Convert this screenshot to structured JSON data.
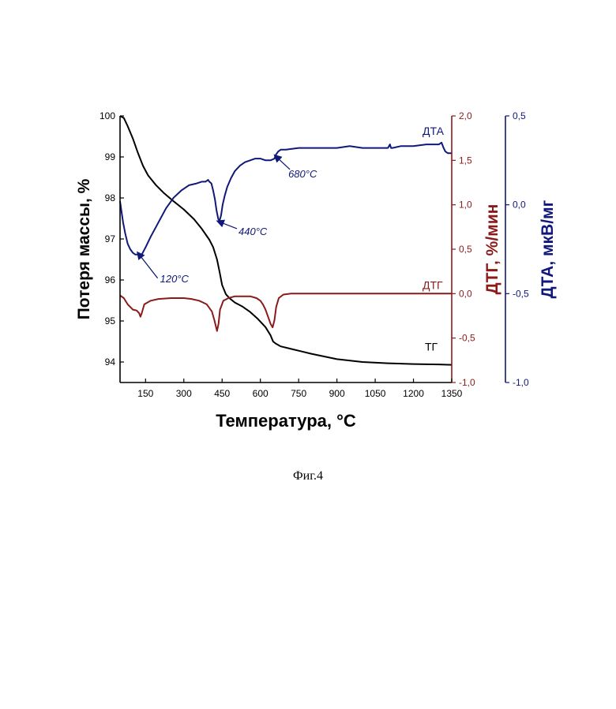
{
  "caption": "Фиг.4",
  "chart_data": {
    "type": "line",
    "xlabel": "Температура, °C",
    "x_ticks": [
      "150",
      "300",
      "450",
      "600",
      "750",
      "900",
      "1050",
      "1200",
      "1350"
    ],
    "x_range": [
      50,
      1350
    ],
    "axes": {
      "left": {
        "label": "Потеря массы, %",
        "range": [
          93.5,
          100
        ],
        "ticks": [
          "94",
          "95",
          "96",
          "97",
          "98",
          "99",
          "100"
        ],
        "color": "#000000"
      },
      "right1": {
        "label": "ДТГ, %/мин",
        "range": [
          -1.0,
          2.0
        ],
        "ticks": [
          "-1,0",
          "-0,5",
          "0,0",
          "0,5",
          "1,0",
          "1,5",
          "2,0"
        ],
        "color": "#8b1a1a"
      },
      "right2": {
        "label": "ДТА, мкВ/мг",
        "range": [
          -1.0,
          0.5
        ],
        "ticks": [
          "-1,0",
          "-0,5",
          "0,0",
          "0,5"
        ],
        "color": "#10187a"
      }
    },
    "series": [
      {
        "name": "ТГ",
        "axis": "left",
        "color": "#000000",
        "x": [
          50,
          65,
          80,
          100,
          120,
          140,
          160,
          190,
          220,
          260,
          300,
          340,
          370,
          400,
          415,
          430,
          440,
          450,
          465,
          480,
          500,
          530,
          560,
          590,
          620,
          640,
          650,
          660,
          680,
          720,
          800,
          900,
          1000,
          1100,
          1200,
          1300,
          1350
        ],
        "y": [
          100,
          99.95,
          99.75,
          99.45,
          99.1,
          98.78,
          98.55,
          98.32,
          98.13,
          97.92,
          97.72,
          97.48,
          97.25,
          96.98,
          96.8,
          96.5,
          96.2,
          95.88,
          95.65,
          95.55,
          95.45,
          95.35,
          95.22,
          95.05,
          94.85,
          94.65,
          94.5,
          94.45,
          94.38,
          94.32,
          94.2,
          94.07,
          94.0,
          93.97,
          93.95,
          93.94,
          93.93
        ]
      },
      {
        "name": "ДТГ",
        "axis": "right1",
        "color": "#8b1a1a",
        "x": [
          50,
          65,
          80,
          100,
          115,
          125,
          130,
          135,
          145,
          170,
          200,
          250,
          300,
          330,
          360,
          390,
          410,
          420,
          430,
          436,
          442,
          455,
          475,
          500,
          530,
          560,
          585,
          600,
          610,
          620,
          630,
          640,
          648,
          655,
          662,
          672,
          690,
          720,
          800,
          900,
          1000,
          1100,
          1200,
          1300,
          1350
        ],
        "y": [
          -0.02,
          -0.05,
          -0.12,
          -0.18,
          -0.19,
          -0.22,
          -0.26,
          -0.22,
          -0.12,
          -0.08,
          -0.06,
          -0.05,
          -0.05,
          -0.06,
          -0.08,
          -0.12,
          -0.2,
          -0.3,
          -0.42,
          -0.34,
          -0.18,
          -0.08,
          -0.05,
          -0.03,
          -0.03,
          -0.03,
          -0.05,
          -0.08,
          -0.12,
          -0.18,
          -0.26,
          -0.34,
          -0.38,
          -0.3,
          -0.15,
          -0.05,
          -0.01,
          0.0,
          0.0,
          0.0,
          0.0,
          0.0,
          0.0,
          0.0,
          0.0
        ]
      },
      {
        "name": "ДТА",
        "axis": "right2",
        "color": "#10187a",
        "x": [
          50,
          55,
          62,
          70,
          80,
          90,
          100,
          110,
          120,
          128,
          135,
          150,
          170,
          200,
          230,
          260,
          290,
          320,
          350,
          370,
          385,
          395,
          400,
          408,
          415,
          422,
          428,
          435,
          440,
          446,
          452,
          460,
          470,
          485,
          500,
          520,
          540,
          560,
          580,
          600,
          620,
          640,
          655,
          660,
          670,
          680,
          700,
          750,
          800,
          900,
          950,
          1000,
          1050,
          1100,
          1108,
          1112,
          1118,
          1150,
          1200,
          1250,
          1300,
          1310,
          1318,
          1325,
          1335,
          1350
        ],
        "y": [
          0.02,
          -0.03,
          -0.1,
          -0.16,
          -0.22,
          -0.25,
          -0.27,
          -0.28,
          -0.28,
          -0.29,
          -0.28,
          -0.24,
          -0.18,
          -0.1,
          -0.02,
          0.04,
          0.08,
          0.11,
          0.12,
          0.13,
          0.13,
          0.14,
          0.13,
          0.12,
          0.08,
          0.03,
          -0.03,
          -0.08,
          -0.09,
          -0.06,
          0.0,
          0.05,
          0.1,
          0.15,
          0.19,
          0.22,
          0.24,
          0.25,
          0.26,
          0.26,
          0.25,
          0.25,
          0.26,
          0.28,
          0.3,
          0.31,
          0.31,
          0.32,
          0.32,
          0.32,
          0.33,
          0.32,
          0.32,
          0.32,
          0.34,
          0.32,
          0.32,
          0.33,
          0.33,
          0.34,
          0.34,
          0.35,
          0.32,
          0.3,
          0.29,
          0.29
        ]
      }
    ],
    "annotations": [
      {
        "text": "120°C",
        "series": "ДТА",
        "x": 120,
        "y": -0.28
      },
      {
        "text": "440°C",
        "series": "ДТА",
        "x": 440,
        "y": -0.09
      },
      {
        "text": "680°C",
        "series": "ДТА",
        "x": 660,
        "y": 0.27
      }
    ]
  }
}
